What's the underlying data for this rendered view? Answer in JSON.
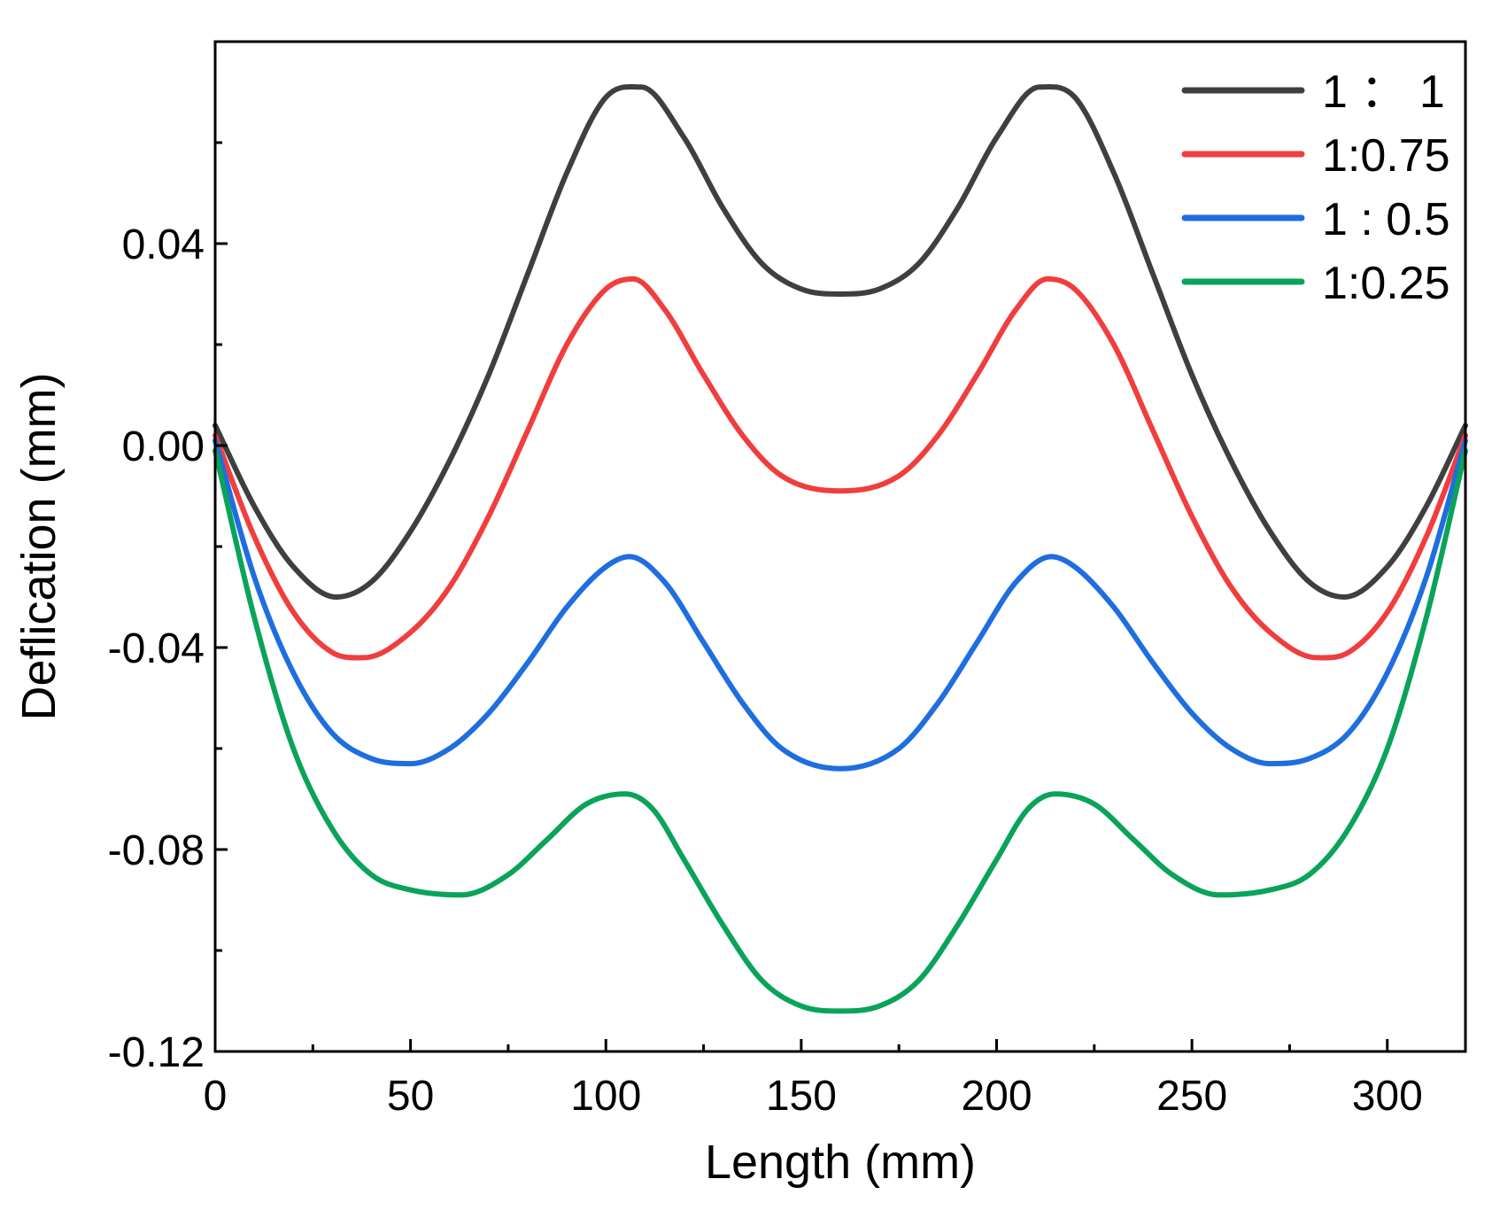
{
  "chart_data": {
    "type": "line",
    "title": "",
    "xlabel": "Length (mm)",
    "ylabel": "Deflication (mm)",
    "xlim": [
      0,
      320
    ],
    "ylim": [
      -0.12,
      0.08
    ],
    "x_ticks": [
      0,
      50,
      100,
      150,
      200,
      250,
      300
    ],
    "x_tick_labels": [
      "0",
      "50",
      "100",
      "150",
      "200",
      "250",
      "300"
    ],
    "x_minor_ticks": [
      25,
      75,
      125,
      175,
      225,
      275
    ],
    "y_ticks": [
      -0.12,
      -0.08,
      -0.04,
      0.0,
      0.04
    ],
    "y_tick_labels": [
      "-0.12",
      "-0.08",
      "-0.04",
      "0.00",
      "0.04"
    ],
    "y_minor_ticks": [
      -0.1,
      -0.06,
      -0.02,
      0.02,
      0.06
    ],
    "grid": false,
    "legend_position": "top-right",
    "series": [
      {
        "name": "1 ： 1",
        "color": "#3f3f3f",
        "x": [
          0,
          10,
          20,
          31,
          40,
          50,
          60,
          70,
          80,
          90,
          100,
          109,
          120,
          130,
          140,
          150,
          160,
          170,
          180,
          190,
          200,
          211,
          220,
          230,
          240,
          250,
          260,
          270,
          280,
          289,
          300,
          310,
          320
        ],
        "y": [
          0.004,
          -0.012,
          -0.024,
          -0.03,
          -0.027,
          -0.017,
          -0.003,
          0.014,
          0.034,
          0.054,
          0.069,
          0.071,
          0.061,
          0.047,
          0.036,
          0.031,
          0.03,
          0.031,
          0.036,
          0.047,
          0.061,
          0.071,
          0.069,
          0.054,
          0.034,
          0.014,
          -0.003,
          -0.017,
          -0.027,
          -0.03,
          -0.024,
          -0.012,
          0.004
        ]
      },
      {
        "name": "1:0.75",
        "color": "#f03e3e",
        "x": [
          0,
          10,
          20,
          30,
          38,
          50,
          60,
          70,
          80,
          90,
          100,
          107,
          115,
          125,
          135,
          145,
          160,
          175,
          185,
          195,
          205,
          213,
          220,
          230,
          240,
          250,
          260,
          270,
          282,
          290,
          300,
          310,
          320
        ],
        "y": [
          0.002,
          -0.018,
          -0.033,
          -0.041,
          -0.042,
          -0.037,
          -0.028,
          -0.014,
          0.003,
          0.02,
          0.031,
          0.033,
          0.027,
          0.014,
          0.002,
          -0.006,
          -0.009,
          -0.006,
          0.002,
          0.014,
          0.027,
          0.033,
          0.031,
          0.02,
          0.003,
          -0.014,
          -0.028,
          -0.037,
          -0.042,
          -0.041,
          -0.033,
          -0.018,
          0.002
        ]
      },
      {
        "name": "1 : 0.5",
        "color": "#1f6ee0",
        "x": [
          0,
          10,
          20,
          30,
          40,
          50,
          60,
          70,
          80,
          90,
          100,
          106,
          115,
          125,
          135,
          145,
          160,
          175,
          185,
          195,
          205,
          214,
          220,
          230,
          240,
          250,
          260,
          270,
          280,
          290,
          300,
          310,
          320
        ],
        "y": [
          0.001,
          -0.026,
          -0.045,
          -0.057,
          -0.062,
          -0.063,
          -0.06,
          -0.053,
          -0.043,
          -0.032,
          -0.024,
          -0.022,
          -0.027,
          -0.039,
          -0.051,
          -0.06,
          -0.064,
          -0.06,
          -0.051,
          -0.039,
          -0.027,
          -0.022,
          -0.024,
          -0.032,
          -0.043,
          -0.053,
          -0.06,
          -0.063,
          -0.062,
          -0.057,
          -0.045,
          -0.026,
          0.001
        ]
      },
      {
        "name": "1:0.25",
        "color": "#0aa35a",
        "x": [
          0,
          10,
          20,
          30,
          40,
          50,
          63,
          75,
          85,
          95,
          105,
          112,
          120,
          130,
          140,
          150,
          160,
          170,
          180,
          190,
          200,
          208,
          215,
          225,
          235,
          245,
          257,
          270,
          280,
          290,
          300,
          310,
          320
        ],
        "y": [
          -0.001,
          -0.034,
          -0.06,
          -0.076,
          -0.085,
          -0.088,
          -0.089,
          -0.085,
          -0.078,
          -0.071,
          -0.069,
          -0.072,
          -0.082,
          -0.095,
          -0.106,
          -0.111,
          -0.112,
          -0.111,
          -0.106,
          -0.095,
          -0.082,
          -0.072,
          -0.069,
          -0.071,
          -0.078,
          -0.085,
          -0.089,
          -0.088,
          -0.085,
          -0.076,
          -0.06,
          -0.034,
          -0.001
        ]
      }
    ]
  }
}
